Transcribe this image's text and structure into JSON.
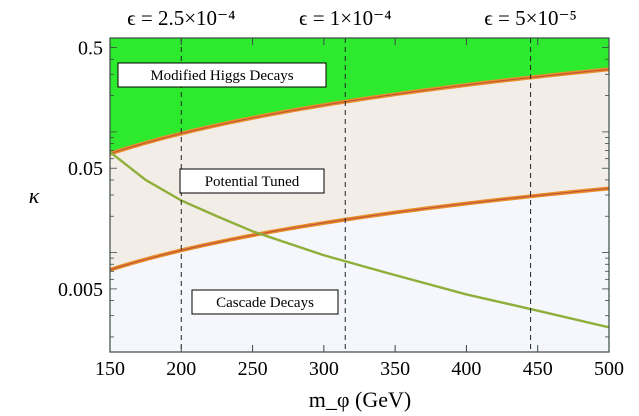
{
  "chart_data": {
    "type": "area",
    "title": "",
    "xlabel": "m_φ (GeV)",
    "ylabel": "κ",
    "xlim": [
      150,
      500
    ],
    "ylim": [
      0.0015,
      0.6
    ],
    "y_scale": "log",
    "xticks": [
      150,
      200,
      250,
      300,
      350,
      400,
      450,
      500
    ],
    "xtick_labels": [
      "150",
      "200",
      "250",
      "300",
      "350",
      "400",
      "450",
      "500"
    ],
    "yticks": [
      0.5,
      0.05,
      0.005
    ],
    "ytick_labels": [
      "0.5",
      "0.05",
      "0.005"
    ],
    "grid": false,
    "legend": "none",
    "series": [
      {
        "name": "upper boundary",
        "x": [
          150,
          200,
          250,
          300,
          350,
          400,
          450,
          500
        ],
        "y": [
          0.066,
          0.125,
          0.165,
          0.2,
          0.235,
          0.27,
          0.3,
          0.33
        ]
      },
      {
        "name": "lower boundary",
        "x": [
          150,
          200,
          250,
          300,
          350,
          400,
          450,
          500
        ],
        "y": [
          0.0072,
          0.0125,
          0.0165,
          0.02,
          0.0235,
          0.027,
          0.03,
          0.034
        ]
      },
      {
        "name": "cascade boundary",
        "x": [
          150,
          175,
          200,
          225,
          250,
          300,
          350,
          400,
          450,
          500
        ],
        "y": [
          0.068,
          0.04,
          0.027,
          0.02,
          0.015,
          0.0095,
          0.0065,
          0.0045,
          0.0033,
          0.0024
        ]
      }
    ],
    "vertical_lines": [
      {
        "x": 200,
        "label": "ϵ = 2.5×10⁻⁴"
      },
      {
        "x": 315,
        "label": "ϵ = 1×10⁻⁴"
      },
      {
        "x": 445,
        "label": "ϵ = 5×10⁻⁵"
      }
    ],
    "regions": [
      {
        "label": "Modified Higgs Decays",
        "color": "#2eea2e"
      },
      {
        "label": "Potential Tuned",
        "color": "#f3ede8"
      },
      {
        "label": "Cascade Decays",
        "color": "#f5f7fd"
      }
    ],
    "colors": {
      "boundary": "#e8902a",
      "boundary_inner": "#c0503a",
      "cascade_line": "#8fae3a",
      "frame": "#3a4a44"
    }
  }
}
